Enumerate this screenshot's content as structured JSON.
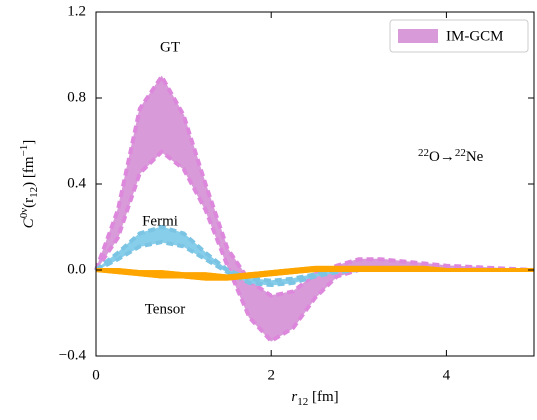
{
  "chart_data": {
    "type": "band",
    "legend": "IM-GCM",
    "legend_color": "#d89ad8",
    "legend_position": "upper right",
    "annotations": [
      "GT",
      "Fermi",
      "Tensor"
    ],
    "reaction": [
      "22",
      "O→",
      "22",
      "Ne"
    ],
    "xlabel": [
      "r",
      "12",
      " [fm]"
    ],
    "ylabel": [
      "C",
      "0ν",
      "(r",
      "12",
      ") [fm",
      "−1",
      "]"
    ],
    "xlim": [
      0,
      5
    ],
    "xticks": [
      0,
      2,
      4
    ],
    "ylim": [
      -0.4,
      1.2
    ],
    "yticks": [
      {
        "value": -0.4,
        "label": "−0.4"
      },
      {
        "value": 0,
        "label": "0.0"
      },
      0.4,
      0.8,
      1.2
    ],
    "x": [
      0,
      0.25,
      0.5,
      0.75,
      1,
      1.25,
      1.5,
      1.75,
      2,
      2.25,
      2.5,
      2.75,
      3,
      3.25,
      3.5,
      3.75,
      4,
      4.5,
      5
    ],
    "series": [
      {
        "color": "#d89ad8",
        "edge": "#dd88dd",
        "upper": [
          0,
          0.28,
          0.75,
          0.9,
          0.72,
          0.4,
          0.1,
          -0.05,
          -0.12,
          -0.1,
          -0.02,
          0.02,
          0.05,
          0.05,
          0.04,
          0.03,
          0.02,
          0.01,
          0
        ],
        "lower": [
          0,
          0.15,
          0.45,
          0.55,
          0.47,
          0.28,
          0.02,
          -0.22,
          -0.33,
          -0.27,
          -0.13,
          -0.03,
          0,
          0.01,
          0.01,
          0,
          0,
          0,
          0
        ]
      },
      {
        "color": "#87ceeb",
        "edge": "#7cc4e4",
        "upper": [
          0,
          0.08,
          0.17,
          0.2,
          0.17,
          0.08,
          0,
          -0.04,
          -0.05,
          -0.04,
          -0.02,
          0,
          0.01,
          0.01,
          0.01,
          0,
          0,
          0,
          0
        ],
        "lower": [
          0,
          0.05,
          0.11,
          0.13,
          0.11,
          0.05,
          -0.01,
          -0.06,
          -0.07,
          -0.06,
          -0.03,
          -0.01,
          0,
          0,
          0,
          0,
          0,
          0,
          0
        ]
      },
      {
        "color": "#ffa500",
        "edge": "#ffa500",
        "upper": [
          0,
          0,
          -0.01,
          -0.01,
          -0.02,
          -0.02,
          -0.03,
          -0.02,
          -0.01,
          0,
          0.01,
          0.01,
          0.01,
          0.01,
          0.01,
          0.01,
          0,
          0,
          0
        ],
        "lower": [
          0,
          -0.01,
          -0.02,
          -0.03,
          -0.03,
          -0.04,
          -0.04,
          -0.03,
          -0.02,
          -0.01,
          0,
          0,
          0,
          0,
          0,
          0,
          0,
          0,
          0
        ]
      }
    ]
  }
}
